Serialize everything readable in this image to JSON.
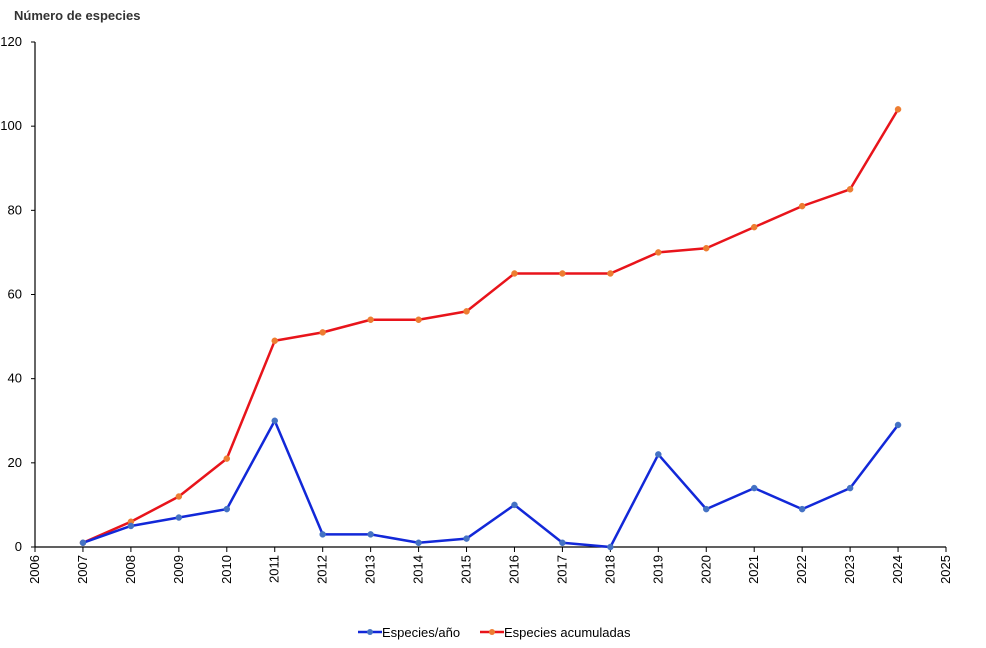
{
  "chart_data": {
    "type": "line",
    "title": "",
    "xlabel": "",
    "ylabel": "Número de especies",
    "xlim": [
      2006,
      2025
    ],
    "ylim": [
      0,
      120
    ],
    "xticks": [
      2006,
      2007,
      2008,
      2009,
      2010,
      2011,
      2012,
      2013,
      2014,
      2015,
      2016,
      2017,
      2018,
      2019,
      2020,
      2021,
      2022,
      2023,
      2024,
      2025
    ],
    "yticks": [
      0,
      20,
      40,
      60,
      80,
      100,
      120
    ],
    "grid": false,
    "legend_position": "bottom-center",
    "x": [
      2007,
      2008,
      2009,
      2010,
      2011,
      2012,
      2013,
      2014,
      2015,
      2016,
      2017,
      2018,
      2019,
      2020,
      2021,
      2022,
      2023,
      2024
    ],
    "series": [
      {
        "name": "Especies/año",
        "line_color": "#1228d8",
        "marker_color": "#4472c4",
        "values": [
          1,
          5,
          7,
          9,
          30,
          3,
          3,
          1,
          2,
          10,
          1,
          0,
          22,
          9,
          14,
          9,
          14,
          29
        ]
      },
      {
        "name": "Especies acumuladas",
        "line_color": "#e8141b",
        "marker_color": "#ed7d31",
        "values": [
          1,
          6,
          12,
          21,
          49,
          51,
          54,
          54,
          56,
          65,
          65,
          65,
          70,
          71,
          76,
          81,
          85,
          104
        ]
      }
    ]
  }
}
